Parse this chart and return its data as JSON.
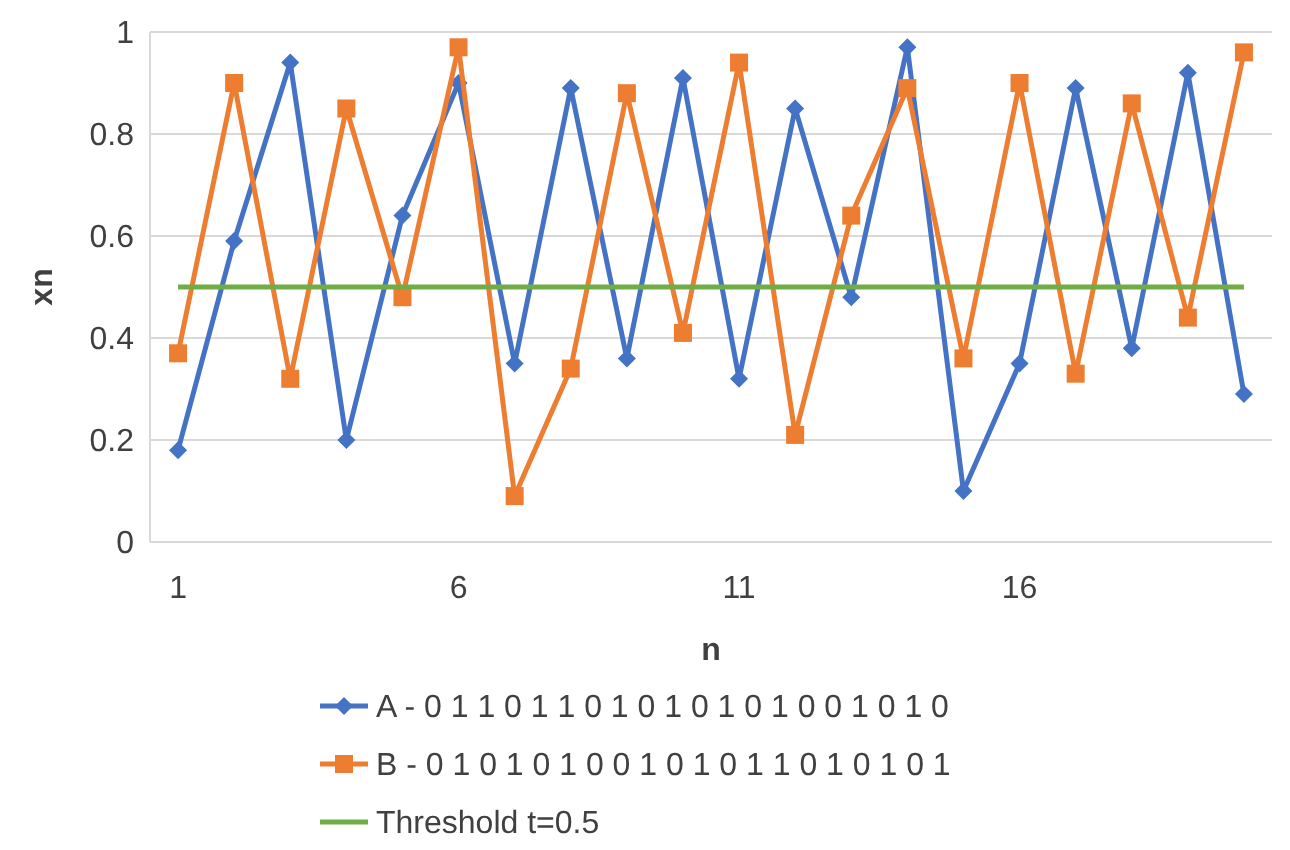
{
  "chart_data": {
    "type": "line",
    "xlabel": "n",
    "ylabel": "xn",
    "x": [
      1,
      2,
      3,
      4,
      5,
      6,
      7,
      8,
      9,
      10,
      11,
      12,
      13,
      14,
      15,
      16,
      17,
      18,
      19,
      20
    ],
    "xlim": [
      0.5,
      20.5
    ],
    "xticks": [
      1,
      6,
      11,
      16
    ],
    "ylim": [
      0,
      1
    ],
    "yticks": [
      0,
      0.2,
      0.4,
      0.6,
      0.8,
      1
    ],
    "grid": "y",
    "legend": "bottom",
    "series": [
      {
        "name": "A - 0 1 1 0 1 1 0 1 0 1 0 1 0 1 0 0 1 0 1 0",
        "color": "#4472c4",
        "marker": "diamond",
        "values": [
          0.18,
          0.59,
          0.94,
          0.2,
          0.64,
          0.9,
          0.35,
          0.89,
          0.36,
          0.91,
          0.32,
          0.85,
          0.48,
          0.97,
          0.1,
          0.35,
          0.89,
          0.38,
          0.92,
          0.29
        ]
      },
      {
        "name": "B - 0 1 0 1 0 1 0 0 1 0 1 0 1 1 0 1 0 1 0 1",
        "color": "#ed7d31",
        "marker": "square",
        "values": [
          0.37,
          0.9,
          0.32,
          0.85,
          0.48,
          0.97,
          0.09,
          0.34,
          0.88,
          0.41,
          0.94,
          0.21,
          0.64,
          0.89,
          0.36,
          0.9,
          0.33,
          0.86,
          0.44,
          0.96
        ]
      },
      {
        "name": "Threshold t=0.5",
        "color": "#70ad47",
        "marker": "none",
        "values": [
          0.5,
          0.5,
          0.5,
          0.5,
          0.5,
          0.5,
          0.5,
          0.5,
          0.5,
          0.5,
          0.5,
          0.5,
          0.5,
          0.5,
          0.5,
          0.5,
          0.5,
          0.5,
          0.5,
          0.5
        ]
      }
    ]
  }
}
